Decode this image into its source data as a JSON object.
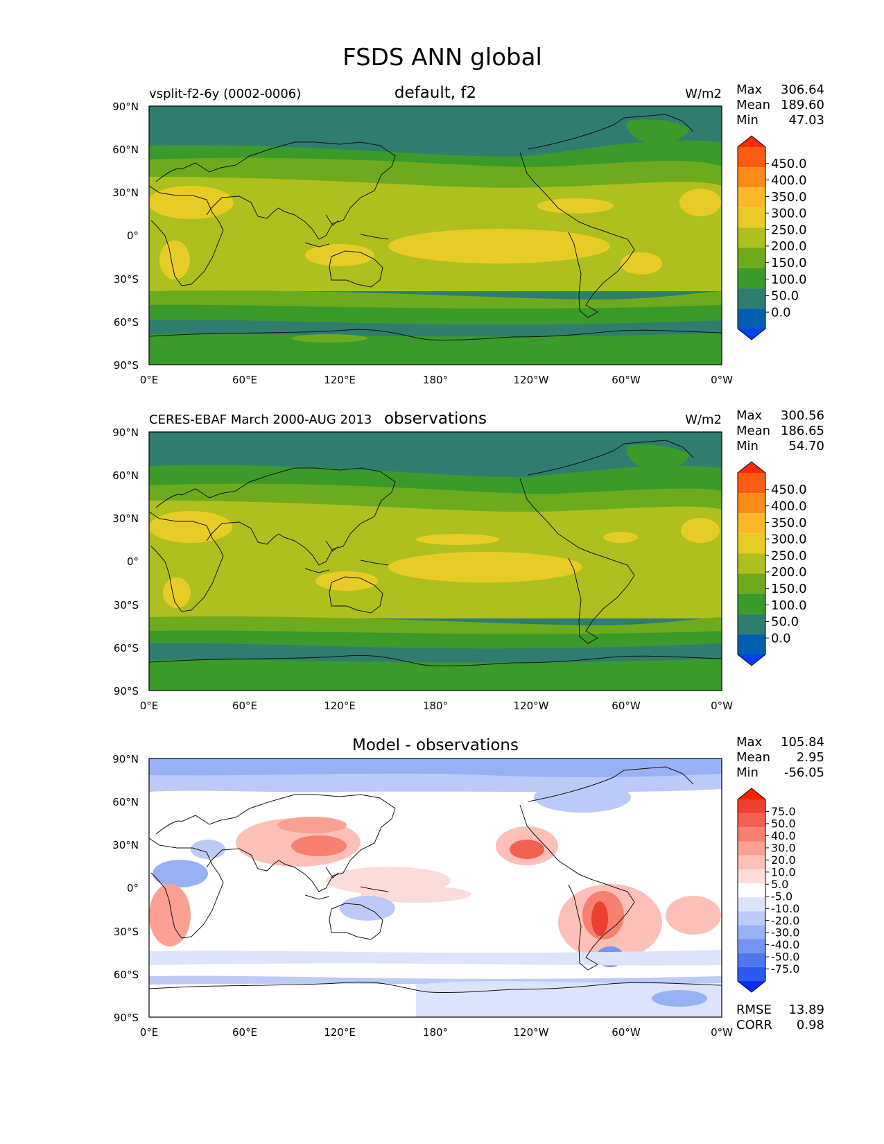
{
  "figure": {
    "title": "FSDS ANN global"
  },
  "latitude_ticks": [
    "90°N",
    "60°N",
    "30°N",
    "0°",
    "30°S",
    "60°S",
    "90°S"
  ],
  "longitude_ticks": [
    "0°E",
    "60°E",
    "120°E",
    "180°",
    "120°W",
    "60°W",
    "0°W"
  ],
  "panels": [
    {
      "left_label": "vsplit-f2-6y (0002-0006)",
      "center_title": "default, f2",
      "units": "W/m2",
      "stats": [
        {
          "label": "Max",
          "value": "306.64"
        },
        {
          "label": "Mean",
          "value": "189.60"
        },
        {
          "label": "Min",
          "value": "47.03"
        }
      ],
      "colorbar_levels": [
        "450.0",
        "400.0",
        "350.0",
        "300.0",
        "250.0",
        "200.0",
        "150.0",
        "100.0",
        "50.0",
        "0.0"
      ]
    },
    {
      "left_label": "CERES-EBAF March 2000-AUG 2013",
      "center_title": "observations",
      "units": "W/m2",
      "stats": [
        {
          "label": "Max",
          "value": "300.56"
        },
        {
          "label": "Mean",
          "value": "186.65"
        },
        {
          "label": "Min",
          "value": "54.70"
        }
      ],
      "colorbar_levels": [
        "450.0",
        "400.0",
        "350.0",
        "300.0",
        "250.0",
        "200.0",
        "150.0",
        "100.0",
        "50.0",
        "0.0"
      ]
    },
    {
      "left_label": "",
      "center_title": "Model - observations",
      "units": "",
      "stats": [
        {
          "label": "Max",
          "value": "105.84"
        },
        {
          "label": "Mean",
          "value": "2.95"
        },
        {
          "label": "Min",
          "value": "-56.05"
        }
      ],
      "colorbar_levels": [
        "75.0",
        "50.0",
        "40.0",
        "30.0",
        "20.0",
        "10.0",
        "5.0",
        "-5.0",
        "-10.0",
        "-20.0",
        "-30.0",
        "-40.0",
        "-50.0",
        "-75.0"
      ],
      "footer_stats": [
        {
          "label": "RMSE",
          "value": "13.89"
        },
        {
          "label": "CORR",
          "value": "0.98"
        }
      ]
    }
  ],
  "colors": {
    "abs_scale": [
      "#0040ff",
      "#0060b0",
      "#2e7d6e",
      "#3a9a2a",
      "#6eaa1e",
      "#aec01e",
      "#e8cc26",
      "#fcb828",
      "#fc8c18",
      "#fc5c12",
      "#fc2a0a"
    ],
    "diff_scale": [
      "#0030ff",
      "#2a5af0",
      "#4c78ec",
      "#7494f0",
      "#98b0f4",
      "#bccaf8",
      "#dce4fc",
      "#ffffff",
      "#fcdcd8",
      "#fcc0b8",
      "#fca094",
      "#f88070",
      "#f46050",
      "#ee4030",
      "#ff2000"
    ]
  },
  "chart_data": [
    {
      "type": "heatmap",
      "title": "default, f2",
      "subtitle": "vsplit-f2-6y (0002-0006)",
      "variable": "FSDS",
      "units": "W/m2",
      "x_range": [
        "0°E",
        "0°W"
      ],
      "y_range": [
        "90°S",
        "90°N"
      ],
      "contour_levels": [
        0,
        50,
        100,
        150,
        200,
        250,
        300,
        350,
        400,
        450
      ],
      "stats": {
        "max": 306.64,
        "mean": 189.6,
        "min": 47.03
      },
      "zonal_bands": [
        {
          "lat": [
            60,
            90
          ],
          "range": "50-100"
        },
        {
          "lat": [
            40,
            60
          ],
          "range": "100-150"
        },
        {
          "lat": [
            10,
            40
          ],
          "range": "200-300"
        },
        {
          "lat": [
            -15,
            10
          ],
          "range": "200-300"
        },
        {
          "lat": [
            -35,
            -15
          ],
          "range": "200-250"
        },
        {
          "lat": [
            -55,
            -35
          ],
          "range": "100-150"
        },
        {
          "lat": [
            -70,
            -55
          ],
          "range": "50-100"
        },
        {
          "lat": [
            -90,
            -70
          ],
          "range": "100-150"
        }
      ]
    },
    {
      "type": "heatmap",
      "title": "observations",
      "subtitle": "CERES-EBAF March 2000-AUG 2013",
      "variable": "FSDS",
      "units": "W/m2",
      "x_range": [
        "0°E",
        "0°W"
      ],
      "y_range": [
        "90°S",
        "90°N"
      ],
      "contour_levels": [
        0,
        50,
        100,
        150,
        200,
        250,
        300,
        350,
        400,
        450
      ],
      "stats": {
        "max": 300.56,
        "mean": 186.65,
        "min": 54.7
      },
      "zonal_bands": [
        {
          "lat": [
            65,
            90
          ],
          "range": "50-100"
        },
        {
          "lat": [
            40,
            65
          ],
          "range": "100-150"
        },
        {
          "lat": [
            10,
            40
          ],
          "range": "200-300"
        },
        {
          "lat": [
            -15,
            10
          ],
          "range": "200-300"
        },
        {
          "lat": [
            -35,
            -15
          ],
          "range": "200-250"
        },
        {
          "lat": [
            -55,
            -35
          ],
          "range": "100-150"
        },
        {
          "lat": [
            -70,
            -55
          ],
          "range": "50-100"
        },
        {
          "lat": [
            -90,
            -70
          ],
          "range": "100-150"
        }
      ]
    },
    {
      "type": "heatmap",
      "title": "Model - observations",
      "variable": "FSDS difference",
      "x_range": [
        "0°E",
        "0°W"
      ],
      "y_range": [
        "90°S",
        "90°N"
      ],
      "contour_levels": [
        -75,
        -50,
        -40,
        -30,
        -20,
        -10,
        -5,
        5,
        10,
        20,
        30,
        40,
        50,
        75
      ],
      "stats": {
        "max": 105.84,
        "mean": 2.95,
        "min": -56.05,
        "rmse": 13.89,
        "corr": 0.98
      }
    }
  ]
}
